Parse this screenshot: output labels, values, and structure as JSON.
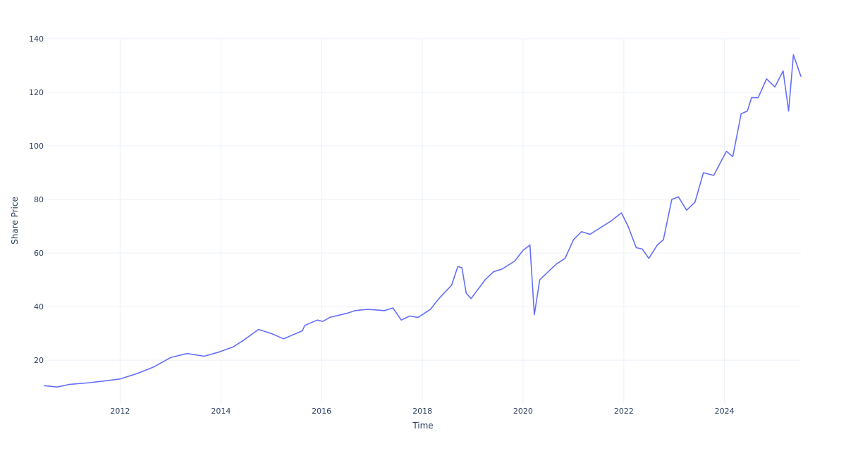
{
  "chart_data": {
    "type": "line",
    "title": "",
    "xlabel": "Time",
    "ylabel": "Share Price",
    "x_type": "date",
    "xlim": [
      "2010-07-01",
      "2025-07-08"
    ],
    "ylim": [
      4,
      140
    ],
    "x_ticks": [
      "2012",
      "2014",
      "2016",
      "2018",
      "2020",
      "2022",
      "2024"
    ],
    "y_ticks": [
      "20",
      "40",
      "60",
      "80",
      "100",
      "120",
      "140"
    ],
    "grid": true,
    "legend": "none",
    "colors": {
      "series": "#636efa",
      "grid": "#ebf0f8",
      "text": "#2a3f5f",
      "background": "#ffffff"
    },
    "series": [
      {
        "x": [
          "2010-07-01",
          "2010-10-01",
          "2011-01-01",
          "2011-05-01",
          "2011-09-01",
          "2012-01-01",
          "2012-05-01",
          "2012-09-01",
          "2013-01-01",
          "2013-05-01",
          "2013-09-01",
          "2013-12-15",
          "2014-04-01",
          "2014-06-15",
          "2014-10-01",
          "2015-01-01",
          "2015-04-01",
          "2015-08-15",
          "2015-09-01",
          "2015-12-01",
          "2016-01-10",
          "2016-03-01",
          "2016-07-01",
          "2016-09-01",
          "2016-12-01",
          "2017-04-01",
          "2017-06-01",
          "2017-08-01",
          "2017-10-01",
          "2017-12-01",
          "2018-03-01",
          "2018-05-01",
          "2018-08-01",
          "2018-09-15",
          "2018-10-15",
          "2018-11-15",
          "2018-12-20",
          "2019-04-01",
          "2019-06-01",
          "2019-08-01",
          "2019-11-01",
          "2020-01-01",
          "2020-02-20",
          "2020-03-23",
          "2020-05-01",
          "2020-07-01",
          "2020-09-01",
          "2020-11-01",
          "2021-01-01",
          "2021-03-01",
          "2021-05-01",
          "2021-08-01",
          "2021-10-01",
          "2021-12-15",
          "2022-02-01",
          "2022-04-01",
          "2022-05-15",
          "2022-07-01",
          "2022-09-01",
          "2022-10-15",
          "2022-12-15",
          "2023-02-01",
          "2023-04-01",
          "2023-06-01",
          "2023-08-01",
          "2023-10-15",
          "2023-12-15",
          "2024-01-15",
          "2024-03-01",
          "2024-05-01",
          "2024-06-15",
          "2024-07-15",
          "2024-09-01",
          "2024-11-01",
          "2025-01-01",
          "2025-03-01",
          "2025-04-10",
          "2025-05-15",
          "2025-07-08"
        ],
        "y": [
          10.5,
          10.0,
          11.0,
          11.5,
          12.2,
          13.0,
          15.0,
          17.5,
          21.0,
          22.5,
          21.5,
          23.0,
          25.0,
          27.5,
          31.5,
          30.0,
          28.0,
          31.0,
          33.0,
          35.0,
          34.5,
          36.0,
          37.5,
          38.5,
          39.0,
          38.5,
          39.5,
          35.0,
          36.5,
          36.0,
          39.0,
          43.0,
          48.0,
          55.0,
          54.5,
          45.0,
          43.0,
          50.0,
          53.0,
          54.0,
          57.0,
          61.0,
          63.0,
          37.0,
          50.0,
          53.0,
          56.0,
          58.0,
          65.0,
          68.0,
          67.0,
          70.0,
          72.0,
          75.0,
          70.0,
          62.0,
          61.5,
          58.0,
          63.0,
          65.0,
          80.0,
          81.0,
          76.0,
          79.0,
          90.0,
          89.0,
          95.0,
          98.0,
          96.0,
          112.0,
          113.0,
          118.0,
          118.0,
          125.0,
          122.0,
          128.0,
          113.0,
          134.0,
          126.0
        ]
      }
    ]
  }
}
